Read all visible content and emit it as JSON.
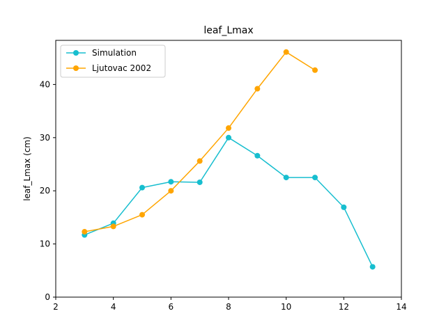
{
  "chart_data": {
    "type": "line",
    "title": "leaf_Lmax",
    "xlabel": "",
    "ylabel": "leaf_Lmax (cm)",
    "xlim": [
      2,
      14
    ],
    "ylim": [
      0,
      48.3
    ],
    "xticks": [
      2,
      4,
      6,
      8,
      10,
      12,
      14
    ],
    "yticks": [
      0,
      10,
      20,
      30,
      40
    ],
    "grid": false,
    "legend_position": "top-left",
    "series": [
      {
        "name": "Simulation",
        "color": "#17becf",
        "marker": "circle",
        "x": [
          3,
          4,
          5,
          6,
          7,
          8,
          9,
          10,
          11,
          12,
          13
        ],
        "y": [
          11.7,
          13.9,
          20.6,
          21.7,
          21.6,
          30.0,
          26.6,
          22.5,
          22.5,
          16.9,
          5.7
        ]
      },
      {
        "name": "Ljutovac 2002",
        "color": "#ffa500",
        "marker": "circle",
        "x": [
          3,
          4,
          5,
          6,
          7,
          8,
          9,
          10,
          11
        ],
        "y": [
          12.3,
          13.3,
          15.5,
          20.0,
          25.6,
          31.8,
          39.2,
          46.1,
          42.7
        ]
      }
    ]
  }
}
